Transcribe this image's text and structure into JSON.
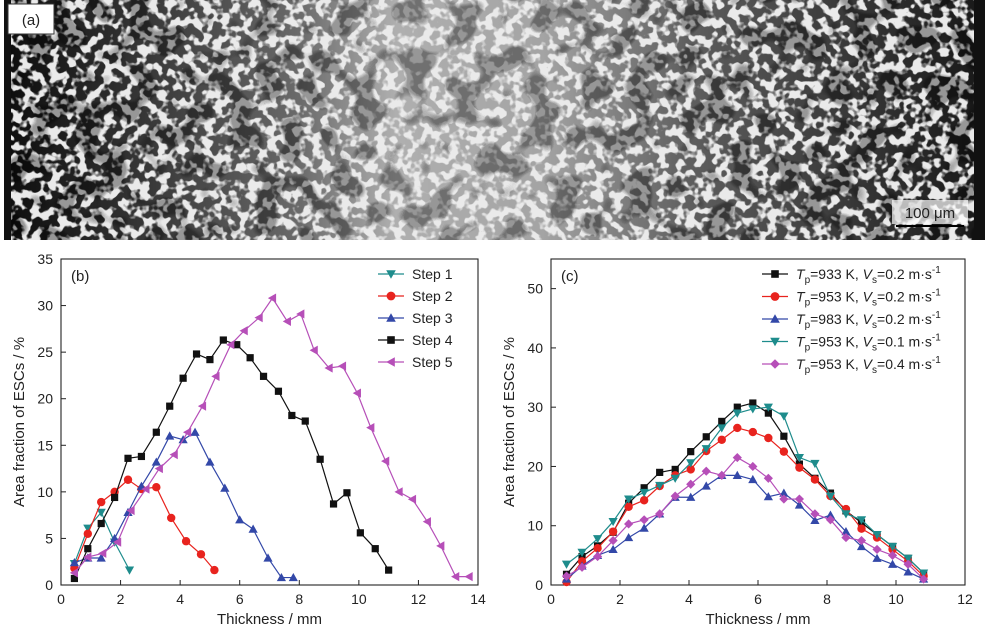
{
  "panel_a": {
    "label": "(a)",
    "scale_bar": "100 μm"
  },
  "colors": {
    "step1": "#1e8c8c",
    "step2": "#e8231e",
    "step3": "#3348a8",
    "step4": "#111111",
    "step5": "#b64fb8",
    "c_s1": "#111111",
    "c_s2": "#e8231e",
    "c_s3": "#3348a8",
    "c_s4": "#1e8c8c",
    "c_s5": "#b64fb8"
  },
  "chart_data": [
    {
      "panel_label": "(b)",
      "type": "line",
      "xlabel": "Thickness / mm",
      "ylabel": "Area fraction of ESCs / %",
      "xlim": [
        0,
        14
      ],
      "ylim": [
        0,
        35
      ],
      "xticks": [
        0,
        2,
        4,
        6,
        8,
        10,
        12,
        14
      ],
      "yticks": [
        0,
        5,
        10,
        15,
        20,
        25,
        30,
        35
      ],
      "grid": false,
      "legend": "top-right",
      "series": [
        {
          "name": "Step 1",
          "marker": "triangle-down",
          "color": "#1e8c8c",
          "x": [
            0.45,
            0.9,
            1.35,
            1.8,
            2.3
          ],
          "y": [
            2.3,
            6.1,
            7.8,
            4.6,
            1.6
          ]
        },
        {
          "name": "Step 2",
          "marker": "circle",
          "color": "#e8231e",
          "x": [
            0.45,
            0.9,
            1.35,
            1.8,
            2.25,
            2.7,
            3.2,
            3.7,
            4.2,
            4.7,
            5.15
          ],
          "y": [
            1.8,
            5.5,
            8.9,
            10.0,
            11.3,
            10.3,
            10.5,
            7.2,
            4.7,
            3.3,
            1.6
          ]
        },
        {
          "name": "Step 3",
          "marker": "triangle-up",
          "color": "#3348a8",
          "x": [
            0.45,
            0.9,
            1.35,
            1.8,
            2.25,
            2.7,
            3.2,
            3.65,
            4.1,
            4.5,
            5.0,
            5.5,
            6.0,
            6.45,
            6.95,
            7.4,
            7.8
          ],
          "y": [
            2.4,
            2.9,
            2.9,
            5.0,
            7.8,
            10.6,
            13.2,
            16.0,
            15.6,
            16.4,
            13.2,
            10.4,
            7.0,
            6.0,
            2.9,
            0.8,
            0.8
          ]
        },
        {
          "name": "Step 4",
          "marker": "square",
          "color": "#111111",
          "x": [
            0.45,
            0.9,
            1.35,
            1.8,
            2.25,
            2.7,
            3.2,
            3.65,
            4.1,
            4.55,
            5.0,
            5.45,
            5.9,
            6.35,
            6.8,
            7.3,
            7.75,
            8.2,
            8.7,
            9.15,
            9.6,
            10.05,
            10.55,
            11.0
          ],
          "y": [
            0.7,
            3.9,
            6.6,
            9.4,
            13.6,
            13.8,
            16.4,
            19.2,
            22.2,
            24.8,
            24.2,
            26.3,
            25.8,
            24.4,
            22.4,
            20.8,
            18.2,
            17.6,
            13.5,
            8.7,
            9.9,
            5.6,
            3.9,
            1.6
          ]
        },
        {
          "name": "Step 5",
          "marker": "triangle-left",
          "color": "#b64fb8",
          "x": [
            0.45,
            0.9,
            1.4,
            1.9,
            2.35,
            2.85,
            3.3,
            3.8,
            4.25,
            4.75,
            5.2,
            5.7,
            6.15,
            6.65,
            7.1,
            7.6,
            8.05,
            8.5,
            9.0,
            9.45,
            9.95,
            10.4,
            10.9,
            11.35,
            11.8,
            12.3,
            12.75,
            13.25,
            13.7
          ],
          "y": [
            1.3,
            3.0,
            3.4,
            4.6,
            8.0,
            10.3,
            12.5,
            14.0,
            16.4,
            19.2,
            22.4,
            25.8,
            27.3,
            28.7,
            30.8,
            28.3,
            29.1,
            25.2,
            23.3,
            23.5,
            20.6,
            16.9,
            13.3,
            10.0,
            9.2,
            6.8,
            4.2,
            0.9,
            0.9
          ]
        }
      ]
    },
    {
      "panel_label": "(c)",
      "type": "line",
      "xlabel": "Thickness / mm",
      "ylabel": "Area fraction of ESCs / %",
      "xlim": [
        0,
        12
      ],
      "ylim": [
        0,
        55
      ],
      "xticks": [
        0,
        2,
        4,
        6,
        8,
        10,
        12
      ],
      "yticks": [
        0,
        10,
        20,
        30,
        40,
        50
      ],
      "grid": false,
      "legend": "top-right",
      "series": [
        {
          "name_parts": [
            "T",
            "p",
            "=933 K, ",
            "V",
            "s",
            "=0.2 m·s",
            "-1"
          ],
          "marker": "square",
          "color": "#111111",
          "x": [
            0.45,
            0.9,
            1.35,
            1.8,
            2.25,
            2.7,
            3.15,
            3.6,
            4.05,
            4.5,
            4.95,
            5.4,
            5.85,
            6.3,
            6.75,
            7.2,
            7.65,
            8.1,
            8.55,
            9.0,
            9.45,
            9.9,
            10.35,
            10.8
          ],
          "y": [
            1.8,
            4.8,
            6.6,
            8.9,
            13.8,
            16.4,
            19.0,
            19.5,
            22.5,
            25.0,
            27.6,
            30.0,
            30.7,
            29.0,
            25.1,
            20.4,
            18.0,
            15.5,
            12.5,
            10.5,
            8.5,
            6.5,
            4.5,
            2.0
          ]
        },
        {
          "name_parts": [
            "T",
            "p",
            "=953 K, ",
            "V",
            "s",
            "=0.2 m·s",
            "-1"
          ],
          "marker": "circle",
          "color": "#e8231e",
          "x": [
            0.45,
            0.9,
            1.35,
            1.8,
            2.25,
            2.7,
            3.15,
            3.6,
            4.05,
            4.5,
            4.95,
            5.4,
            5.85,
            6.3,
            6.75,
            7.2,
            7.65,
            8.1,
            8.55,
            9.0,
            9.45,
            9.9,
            10.35,
            10.8
          ],
          "y": [
            0.5,
            4.0,
            6.2,
            9.0,
            13.2,
            14.3,
            16.7,
            18.5,
            19.5,
            22.6,
            24.5,
            26.5,
            25.8,
            24.8,
            22.5,
            19.8,
            17.8,
            15.0,
            12.8,
            9.5,
            8.0,
            6.0,
            4.0,
            1.5
          ]
        },
        {
          "name_parts": [
            "T",
            "p",
            "=983 K, ",
            "V",
            "s",
            "=0.2 m·s",
            "-1"
          ],
          "marker": "triangle-up",
          "color": "#3348a8",
          "x": [
            0.45,
            0.9,
            1.35,
            1.8,
            2.25,
            2.7,
            3.15,
            3.6,
            4.05,
            4.5,
            4.95,
            5.4,
            5.85,
            6.3,
            6.75,
            7.2,
            7.65,
            8.1,
            8.55,
            9.0,
            9.45,
            9.9,
            10.35,
            10.8
          ],
          "y": [
            1.0,
            3.2,
            5.0,
            6.0,
            8.0,
            9.6,
            12.0,
            14.8,
            14.8,
            16.7,
            18.5,
            18.5,
            17.8,
            14.9,
            15.5,
            13.5,
            10.9,
            11.8,
            9.0,
            6.5,
            4.5,
            3.5,
            2.2,
            1.0
          ]
        },
        {
          "name_parts": [
            "T",
            "p",
            "=953 K, ",
            "V",
            "s",
            "=0.1 m·s",
            "-1"
          ],
          "marker": "triangle-down",
          "color": "#1e8c8c",
          "x": [
            0.45,
            0.9,
            1.35,
            1.8,
            2.25,
            2.7,
            3.15,
            3.6,
            4.05,
            4.5,
            4.95,
            5.4,
            5.85,
            6.3,
            6.75,
            7.2,
            7.65,
            8.1,
            8.55,
            9.0,
            9.45,
            9.9,
            10.35,
            10.8
          ],
          "y": [
            3.5,
            5.5,
            7.8,
            10.7,
            14.5,
            15.6,
            16.8,
            18.0,
            20.6,
            23.0,
            26.5,
            29.0,
            29.7,
            30.0,
            28.5,
            21.5,
            20.5,
            15.0,
            12.0,
            11.0,
            8.5,
            6.5,
            4.5,
            2.0
          ]
        },
        {
          "name_parts": [
            "T",
            "p",
            "=953 K, ",
            "V",
            "s",
            "=0.4 m·s",
            "-1"
          ],
          "marker": "diamond",
          "color": "#b64fb8",
          "x": [
            0.45,
            0.9,
            1.35,
            1.8,
            2.25,
            2.7,
            3.15,
            3.6,
            4.05,
            4.5,
            4.95,
            5.4,
            5.85,
            6.3,
            6.75,
            7.2,
            7.65,
            8.1,
            8.55,
            9.0,
            9.45,
            9.9,
            10.35,
            10.8
          ],
          "y": [
            1.5,
            3.0,
            4.8,
            7.5,
            10.3,
            11.0,
            12.0,
            15.0,
            17.0,
            19.2,
            18.5,
            21.5,
            20.0,
            18.0,
            14.5,
            14.5,
            12.0,
            11.0,
            8.0,
            7.5,
            6.0,
            5.0,
            3.5,
            1.0
          ]
        }
      ]
    }
  ]
}
